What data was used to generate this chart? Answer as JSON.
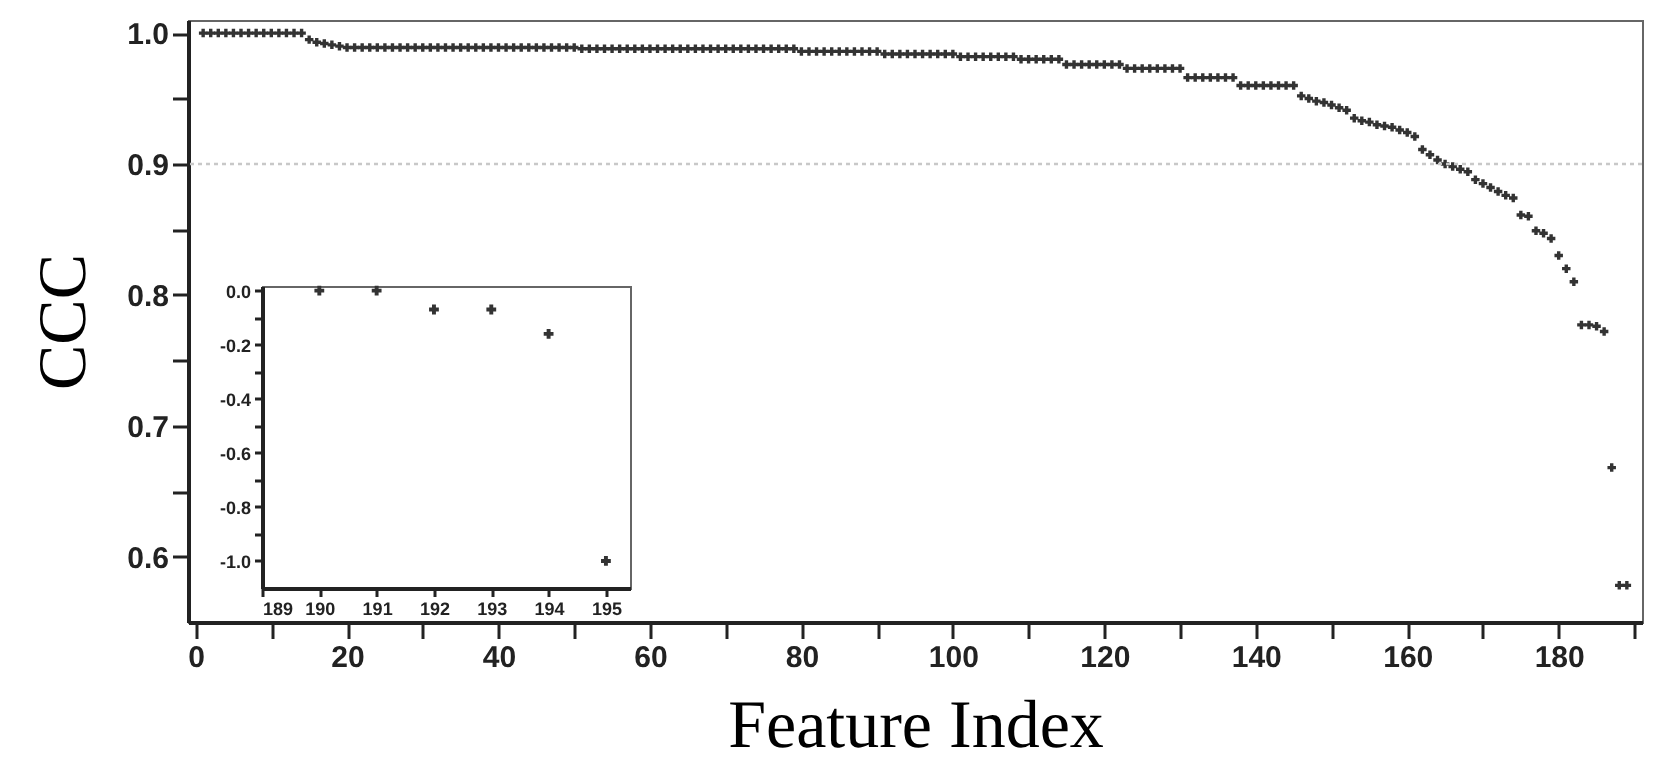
{
  "chart_data": [
    {
      "type": "scatter",
      "xlabel": "Feature Index",
      "ylabel": "CCC",
      "marker": "cross",
      "grid": false,
      "xlim": [
        -1,
        191
      ],
      "ylim": [
        0.55,
        1.01
      ],
      "xticks": [
        0,
        {
          "value": 10,
          "label": null
        },
        20,
        {
          "value": 30,
          "label": null
        },
        40,
        {
          "value": 50,
          "label": null
        },
        60,
        {
          "value": 70,
          "label": null
        },
        80,
        {
          "value": 90,
          "label": null
        },
        100,
        {
          "value": 110,
          "label": null
        },
        120,
        {
          "value": 130,
          "label": null
        },
        140,
        {
          "value": 150,
          "label": null
        },
        160,
        {
          "value": 170,
          "label": null
        },
        180,
        {
          "value": 190,
          "label": null
        }
      ],
      "yticks": [
        0.6,
        {
          "value": 0.65,
          "label": null
        },
        0.7,
        {
          "value": 0.75,
          "label": null
        },
        0.8,
        {
          "value": 0.85,
          "label": null
        },
        0.9,
        {
          "value": 0.95,
          "label": null
        },
        {
          "value": 1,
          "label": "1.0"
        }
      ],
      "ref_lines": [
        {
          "axis": "y",
          "value": 0.9,
          "color": "#c8c8c8",
          "line_style": "dotted"
        }
      ],
      "x": [
        1,
        2,
        3,
        4,
        5,
        6,
        7,
        8,
        9,
        10,
        11,
        12,
        13,
        14,
        15,
        16,
        17,
        18,
        19,
        20,
        21,
        22,
        23,
        24,
        25,
        26,
        27,
        28,
        29,
        30,
        31,
        32,
        33,
        34,
        35,
        36,
        37,
        38,
        39,
        40,
        41,
        42,
        43,
        44,
        45,
        46,
        47,
        48,
        49,
        50,
        51,
        52,
        53,
        54,
        55,
        56,
        57,
        58,
        59,
        60,
        61,
        62,
        63,
        64,
        65,
        66,
        67,
        68,
        69,
        70,
        71,
        72,
        73,
        74,
        75,
        76,
        77,
        78,
        79,
        80,
        81,
        82,
        83,
        84,
        85,
        86,
        87,
        88,
        89,
        90,
        91,
        92,
        93,
        94,
        95,
        96,
        97,
        98,
        99,
        100,
        101,
        102,
        103,
        104,
        105,
        106,
        107,
        108,
        109,
        110,
        111,
        112,
        113,
        114,
        115,
        116,
        117,
        118,
        119,
        120,
        121,
        122,
        123,
        124,
        125,
        126,
        127,
        128,
        129,
        130,
        131,
        132,
        133,
        134,
        135,
        136,
        137,
        138,
        139,
        140,
        141,
        142,
        143,
        144,
        145,
        146,
        147,
        148,
        149,
        150,
        151,
        152,
        153,
        154,
        155,
        156,
        157,
        158,
        159,
        160,
        161,
        162,
        163,
        164,
        165,
        166,
        167,
        168,
        169,
        170,
        171,
        172,
        173,
        174,
        175,
        176,
        177,
        178,
        179,
        180,
        181,
        182,
        183,
        184,
        185,
        186,
        187,
        188,
        189
      ],
      "series": [
        {
          "color": "#333333",
          "values": [
            1,
            1,
            1,
            1,
            1,
            1,
            1,
            1,
            1,
            1,
            1,
            1,
            1,
            1,
            0.995,
            0.993,
            0.992,
            0.991,
            0.99,
            0.989,
            0.989,
            0.989,
            0.989,
            0.989,
            0.989,
            0.989,
            0.989,
            0.989,
            0.989,
            0.989,
            0.989,
            0.989,
            0.989,
            0.989,
            0.989,
            0.989,
            0.989,
            0.989,
            0.989,
            0.989,
            0.989,
            0.989,
            0.989,
            0.989,
            0.989,
            0.989,
            0.989,
            0.989,
            0.989,
            0.989,
            0.988,
            0.988,
            0.988,
            0.988,
            0.988,
            0.988,
            0.988,
            0.988,
            0.988,
            0.988,
            0.988,
            0.988,
            0.988,
            0.988,
            0.988,
            0.988,
            0.988,
            0.988,
            0.988,
            0.988,
            0.988,
            0.988,
            0.988,
            0.988,
            0.988,
            0.988,
            0.988,
            0.988,
            0.988,
            0.986,
            0.986,
            0.986,
            0.986,
            0.986,
            0.986,
            0.986,
            0.986,
            0.986,
            0.986,
            0.986,
            0.984,
            0.984,
            0.984,
            0.984,
            0.984,
            0.984,
            0.984,
            0.984,
            0.984,
            0.984,
            0.982,
            0.982,
            0.982,
            0.982,
            0.982,
            0.982,
            0.982,
            0.982,
            0.98,
            0.98,
            0.98,
            0.98,
            0.98,
            0.98,
            0.976,
            0.976,
            0.976,
            0.976,
            0.976,
            0.976,
            0.976,
            0.976,
            0.973,
            0.973,
            0.973,
            0.973,
            0.973,
            0.973,
            0.973,
            0.973,
            0.966,
            0.966,
            0.966,
            0.966,
            0.966,
            0.966,
            0.966,
            0.96,
            0.96,
            0.96,
            0.96,
            0.96,
            0.96,
            0.96,
            0.96,
            0.952,
            0.95,
            0.948,
            0.947,
            0.945,
            0.943,
            0.941,
            0.935,
            0.933,
            0.932,
            0.93,
            0.929,
            0.928,
            0.926,
            0.924,
            0.921,
            0.911,
            0.907,
            0.903,
            0.9,
            0.898,
            0.896,
            0.894,
            0.888,
            0.885,
            0.882,
            0.879,
            0.876,
            0.874,
            0.861,
            0.86,
            0.849,
            0.847,
            0.843,
            0.83,
            0.82,
            0.81,
            0.777,
            0.777,
            0.776,
            0.772,
            0.668,
            0.578,
            0.578
          ]
        }
      ]
    },
    {
      "type": "scatter",
      "marker": "cross",
      "grid": false,
      "xlim": [
        189,
        195.42
      ],
      "ylim": [
        -1.1,
        0.017
      ],
      "xticks": [
        189,
        190,
        191,
        192,
        193,
        194,
        195
      ],
      "yticks": [
        {
          "value": -1,
          "label": "-1.0"
        },
        {
          "value": -0.9,
          "label": null
        },
        -0.8,
        {
          "value": -0.7,
          "label": null
        },
        -0.6,
        {
          "value": -0.5,
          "label": null
        },
        -0.4,
        {
          "value": -0.3,
          "label": null
        },
        -0.2,
        {
          "value": -0.1,
          "label": null
        },
        {
          "value": 0,
          "label": "0.0"
        }
      ],
      "x": [
        190,
        191,
        192,
        193,
        194,
        195
      ],
      "series": [
        {
          "color": "#333333",
          "values": [
            0,
            0,
            -0.07,
            -0.07,
            -0.16,
            -1
          ]
        }
      ]
    }
  ]
}
